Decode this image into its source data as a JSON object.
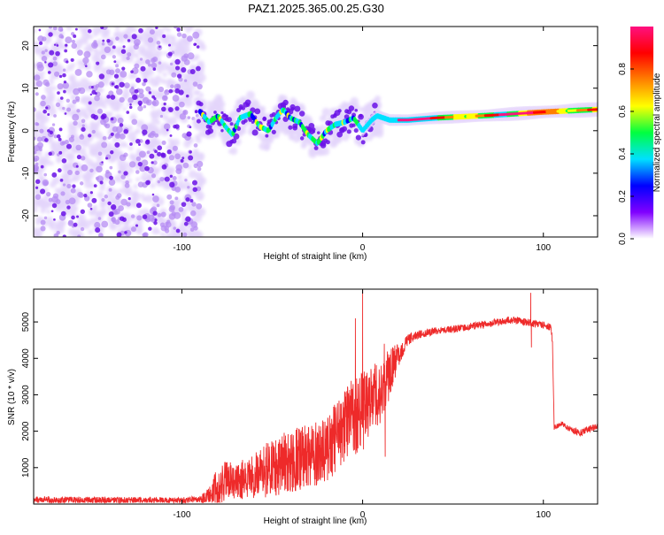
{
  "title": "PAZ1.2025.365.00.25.G30",
  "colors": {
    "line": "#ee2a2a",
    "scatter_light": "#e4d4fb",
    "scatter_mid": "#b58cf3",
    "scatter_dark": "#6a12e6",
    "axis": "#000000",
    "colorbar_stops": [
      "#ffffff",
      "#8000ff",
      "#0000ff",
      "#00e0ff",
      "#00ff40",
      "#ffff00",
      "#ff8000",
      "#ff0000",
      "#ff1080"
    ]
  },
  "chart_data": [
    {
      "type": "scatter",
      "title": "PAZ1.2025.365.00.25.G30",
      "xlabel": "Height of straight line (km)",
      "ylabel": "Frequency (Hz)",
      "xlim": [
        -182,
        130
      ],
      "ylim": [
        -25,
        24.5
      ],
      "x_ticks": [
        -100,
        0,
        100
      ],
      "x_tick_labels": [
        "-100",
        "0",
        "100"
      ],
      "y_ticks": [
        -20,
        -10,
        0,
        10,
        20
      ],
      "y_tick_labels": [
        "-20",
        "-10",
        "0",
        "10",
        "20"
      ],
      "noise_region_x": [
        -182,
        -90
      ],
      "noise_freq_range": [
        -25,
        24.5
      ],
      "ridge": [
        {
          "x": -90,
          "y": 4.5
        },
        {
          "x": -85,
          "y": 2
        },
        {
          "x": -80,
          "y": 3.5
        },
        {
          "x": -76,
          "y": 1
        },
        {
          "x": -72,
          "y": -1
        },
        {
          "x": -68,
          "y": 3
        },
        {
          "x": -62,
          "y": 4
        },
        {
          "x": -57,
          "y": 1
        },
        {
          "x": -52,
          "y": 0
        },
        {
          "x": -48,
          "y": 3
        },
        {
          "x": -44,
          "y": 5
        },
        {
          "x": -40,
          "y": 3
        },
        {
          "x": -35,
          "y": 2
        },
        {
          "x": -30,
          "y": -1
        },
        {
          "x": -25,
          "y": -3
        },
        {
          "x": -20,
          "y": 0
        },
        {
          "x": -15,
          "y": 1.5
        },
        {
          "x": -10,
          "y": 2
        },
        {
          "x": -5,
          "y": 3
        },
        {
          "x": 0,
          "y": 0
        },
        {
          "x": 5,
          "y": 2.5
        },
        {
          "x": 8,
          "y": 3.5
        },
        {
          "x": 15,
          "y": 2.5
        },
        {
          "x": 25,
          "y": 2.5
        },
        {
          "x": 40,
          "y": 3
        },
        {
          "x": 55,
          "y": 3.3
        },
        {
          "x": 70,
          "y": 3.6
        },
        {
          "x": 85,
          "y": 4
        },
        {
          "x": 100,
          "y": 4.4
        },
        {
          "x": 115,
          "y": 4.7
        },
        {
          "x": 130,
          "y": 5
        }
      ],
      "colorbar": {
        "label": "Normalized spectral amplitude",
        "range": [
          0,
          1
        ],
        "ticks": [
          0,
          0.2,
          0.4,
          0.6,
          0.8
        ],
        "tick_labels": [
          "0.0",
          "0.2",
          "0.4",
          "0.6",
          "0.8"
        ]
      }
    },
    {
      "type": "line",
      "xlabel": "Height of straight line (km)",
      "ylabel": "SNR (10 * v/v)",
      "xlim": [
        -182,
        130
      ],
      "ylim": [
        0,
        5900
      ],
      "x_ticks": [
        -100,
        0,
        100
      ],
      "x_tick_labels": [
        "-100",
        "0",
        "100"
      ],
      "y_ticks": [
        1000,
        2000,
        3000,
        4000,
        5000
      ],
      "y_tick_labels": [
        "1000",
        "2000",
        "3000",
        "4000",
        "5000"
      ],
      "series": [
        {
          "name": "SNR",
          "x": [
            -182,
            -150,
            -120,
            -100,
            -90,
            -85,
            -80,
            -75,
            -70,
            -60,
            -50,
            -40,
            -30,
            -20,
            -15,
            -10,
            -5,
            0,
            5,
            10,
            15,
            20,
            25,
            30,
            40,
            50,
            60,
            70,
            80,
            85,
            90,
            95,
            100,
            104,
            105,
            106,
            110,
            115,
            120,
            125,
            130
          ],
          "mean": [
            120,
            110,
            100,
            100,
            120,
            200,
            450,
            700,
            600,
            800,
            1000,
            1200,
            1300,
            1500,
            1800,
            2100,
            2400,
            2600,
            2900,
            3100,
            3600,
            4100,
            4500,
            4650,
            4750,
            4800,
            4880,
            4950,
            5050,
            5050,
            5000,
            4950,
            4920,
            4850,
            4500,
            2100,
            2200,
            2050,
            1950,
            2050,
            2150
          ],
          "amp": [
            90,
            90,
            90,
            90,
            100,
            250,
            600,
            500,
            500,
            650,
            800,
            900,
            900,
            900,
            1000,
            1000,
            1100,
            1100,
            900,
            900,
            700,
            300,
            150,
            120,
            100,
            100,
            100,
            100,
            100,
            100,
            100,
            100,
            100,
            100,
            100,
            80,
            70,
            80,
            100,
            90,
            90
          ],
          "spikes": [
            {
              "x": 0,
              "y": 5900
            },
            {
              "x": 0.5,
              "y": 1500
            },
            {
              "x": 12,
              "y": 4400
            },
            {
              "x": 12.5,
              "y": 1300
            },
            {
              "x": -4,
              "y": 5100
            },
            {
              "x": 93,
              "y": 5800
            },
            {
              "x": 93.4,
              "y": 4300
            }
          ]
        }
      ]
    }
  ]
}
